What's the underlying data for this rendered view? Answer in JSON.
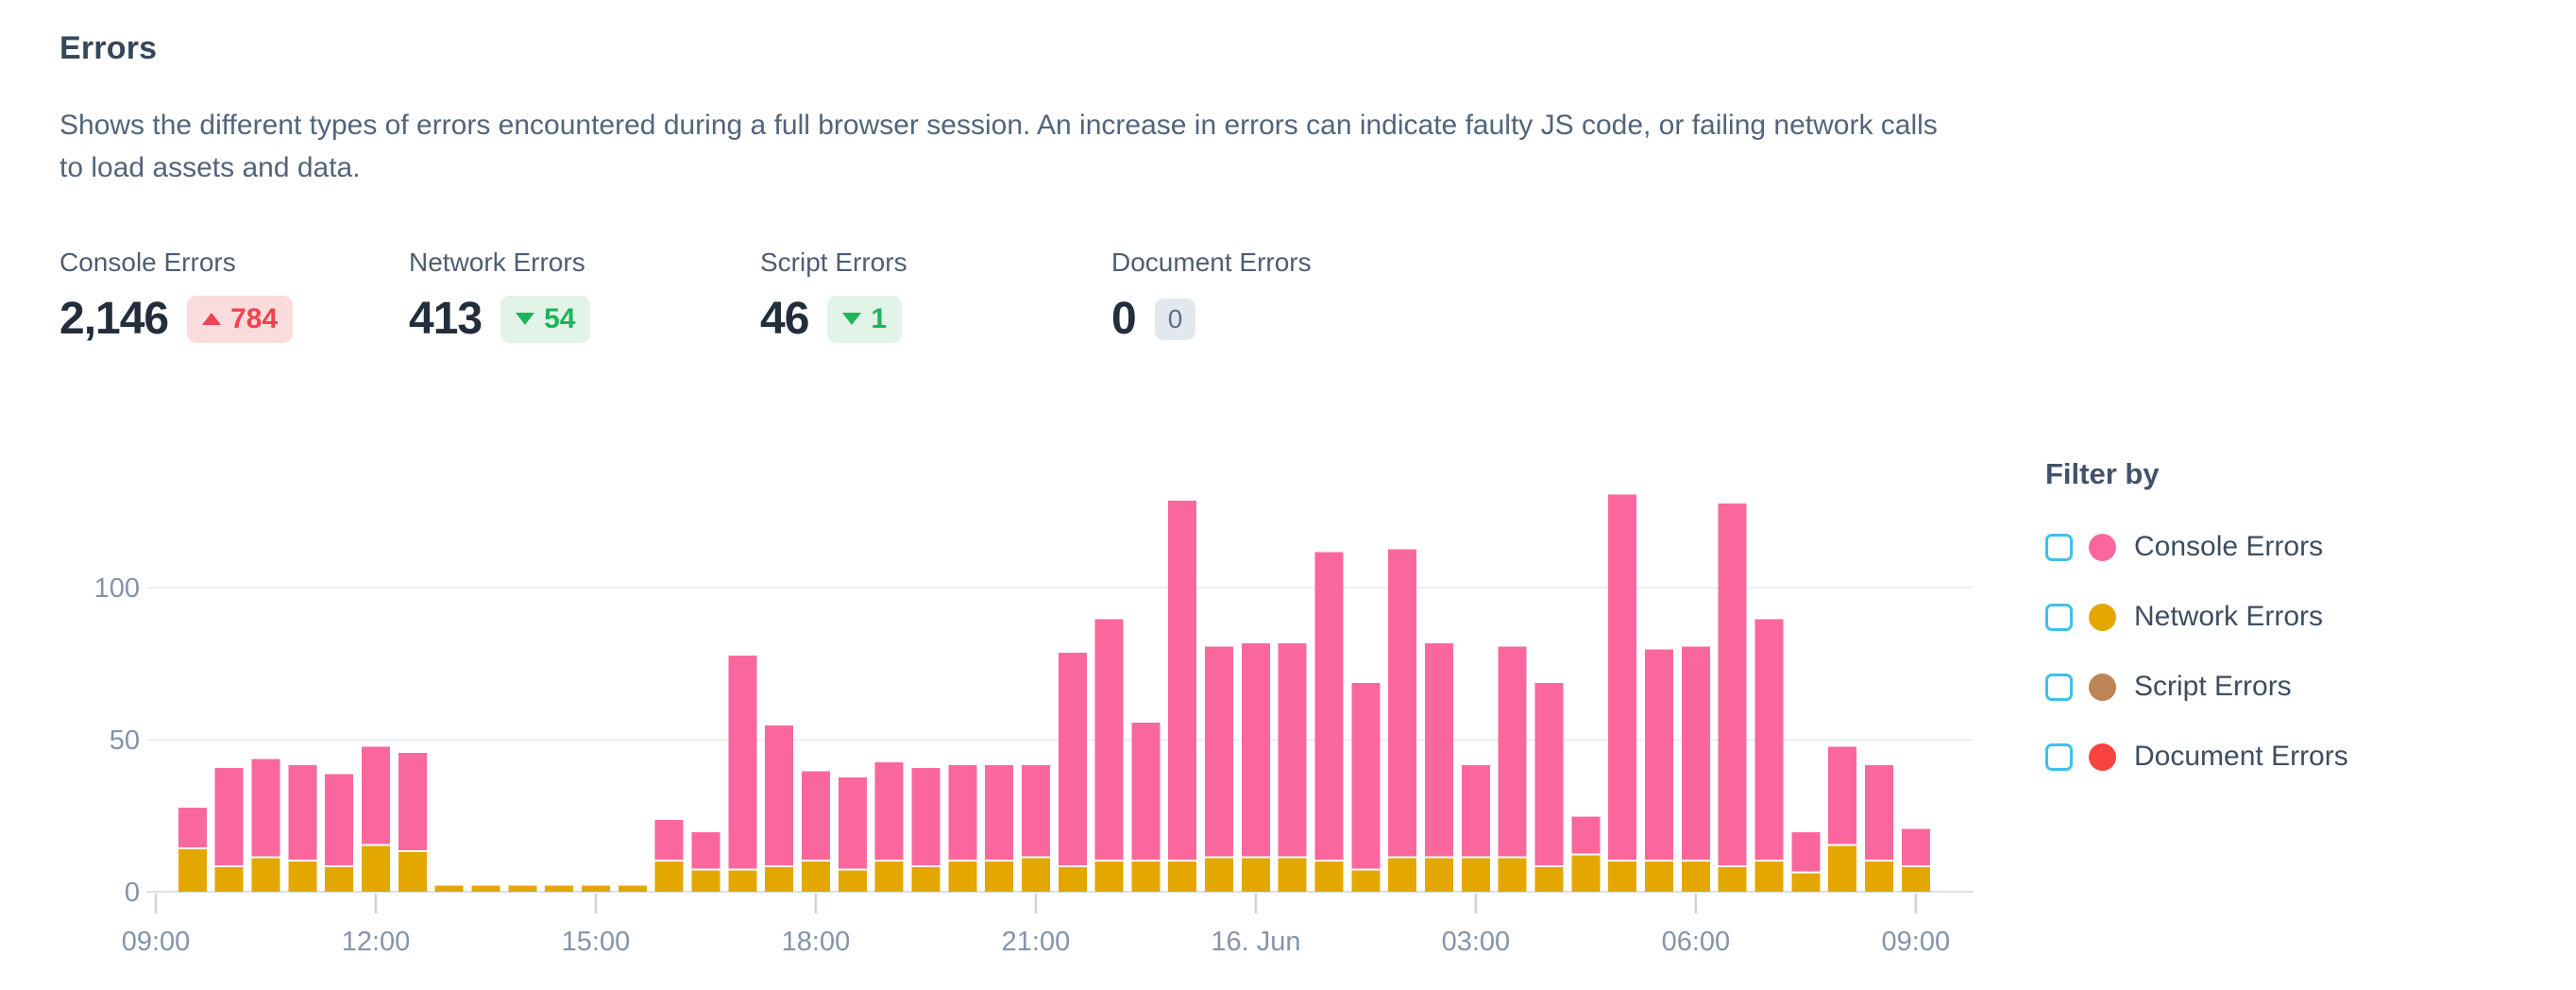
{
  "page": {
    "title": "Errors",
    "description": "Shows the different types of errors encountered during a full browser session. An increase in errors can indicate faulty JS code, or failing network calls to load assets and data."
  },
  "metrics": [
    {
      "label": "Console Errors",
      "value": "2,146",
      "delta": "784",
      "direction": "up",
      "tone": "bad"
    },
    {
      "label": "Network Errors",
      "value": "413",
      "delta": "54",
      "direction": "down",
      "tone": "good"
    },
    {
      "label": "Script Errors",
      "value": "46",
      "delta": "1",
      "direction": "down",
      "tone": "good"
    },
    {
      "label": "Document Errors",
      "value": "0",
      "delta": "0",
      "direction": "none",
      "tone": "neutral"
    }
  ],
  "legend": {
    "title": "Filter by",
    "checkbox_color": "#3FC0EB",
    "items": [
      {
        "label": "Console Errors",
        "color": "#FA679D",
        "checked": false
      },
      {
        "label": "Network Errors",
        "color": "#E4A700",
        "checked": false
      },
      {
        "label": "Script Errors",
        "color": "#BE8455",
        "checked": false
      },
      {
        "label": "Document Errors",
        "color": "#F9433F",
        "checked": false
      }
    ]
  },
  "chart_data": {
    "type": "bar",
    "stacked": true,
    "title": "Errors over a full browser session",
    "xlabel": "",
    "ylabel": "",
    "x_unit": "30min",
    "ylim": [
      0,
      135
    ],
    "y_ticks": [
      0,
      50,
      100
    ],
    "grid": "horizontal",
    "legend_position": "right",
    "categories": [
      "09:30",
      "10:00",
      "10:30",
      "11:00",
      "11:30",
      "12:00",
      "12:30",
      "13:00",
      "13:30",
      "14:00",
      "14:30",
      "15:00",
      "15:30",
      "16:00",
      "16:30",
      "17:00",
      "17:30",
      "18:00",
      "18:30",
      "19:00",
      "19:30",
      "20:00",
      "20:30",
      "21:00",
      "21:30",
      "22:00",
      "22:30",
      "23:00",
      "23:30",
      "00:00",
      "00:30",
      "01:00",
      "01:30",
      "02:00",
      "02:30",
      "03:00",
      "03:30",
      "04:00",
      "04:30",
      "05:00",
      "05:30",
      "06:00",
      "06:30",
      "07:00",
      "07:30",
      "08:00",
      "08:30",
      "09:00"
    ],
    "x_ticks": [
      {
        "label": "09:00",
        "h": 0
      },
      {
        "label": "12:00",
        "h": 3
      },
      {
        "label": "15:00",
        "h": 6
      },
      {
        "label": "18:00",
        "h": 9
      },
      {
        "label": "21:00",
        "h": 12
      },
      {
        "label": "16. Jun",
        "h": 15
      },
      {
        "label": "03:00",
        "h": 18
      },
      {
        "label": "06:00",
        "h": 21
      },
      {
        "label": "09:00",
        "h": 24
      }
    ],
    "series": [
      {
        "name": "Network Errors",
        "color": "#E4A700",
        "values": [
          14,
          8,
          11,
          10,
          8,
          15,
          13,
          2,
          2,
          2,
          2,
          2,
          2,
          10,
          7,
          7,
          8,
          10,
          7,
          10,
          8,
          10,
          10,
          11,
          8,
          10,
          10,
          10,
          11,
          11,
          11,
          10,
          7,
          11,
          11,
          11,
          11,
          8,
          12,
          10,
          10,
          10,
          8,
          10,
          6,
          15,
          10,
          8
        ]
      },
      {
        "name": "Console Errors",
        "color": "#FA679D",
        "values": [
          13,
          32,
          32,
          31,
          30,
          32,
          32,
          0,
          0,
          0,
          0,
          0,
          0,
          13,
          12,
          70,
          46,
          29,
          30,
          32,
          32,
          31,
          31,
          30,
          70,
          79,
          45,
          118,
          69,
          70,
          70,
          101,
          61,
          101,
          70,
          30,
          69,
          60,
          12,
          120,
          69,
          70,
          119,
          79,
          13,
          32,
          31,
          12
        ]
      }
    ],
    "colors": {
      "gridline": "#ECEFF3",
      "axis_line": "#D9E0E8",
      "tick": "#C9D3DD",
      "axis_label": "#8494A8"
    }
  }
}
